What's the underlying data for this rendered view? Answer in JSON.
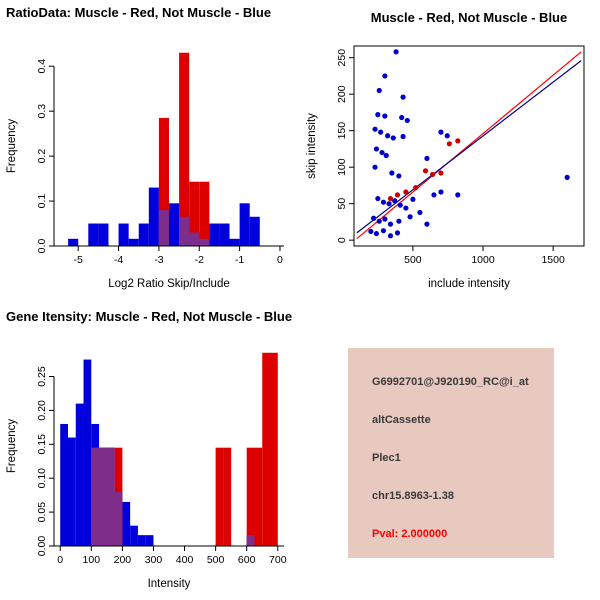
{
  "info_panel": {
    "bg": "#E7C9C0",
    "text_color": "#3A3A3A",
    "pval_color": "#FF0000",
    "probe_id": "G6992701@J920190_RC@i_at",
    "splice_type": "altCassette",
    "gene": "Plec1",
    "locus": "chr15.8963-1.38",
    "pval": "Pval: 2.000000"
  },
  "chart_data": [
    {
      "type": "bar",
      "title": "RatioData: Muscle - Red, Not Muscle - Blue",
      "xlabel": "Log2 Ratio Skip/Include",
      "ylabel": "Frequency",
      "xlim": [
        -5.6,
        0.1
      ],
      "ylim": [
        0,
        0.445
      ],
      "xticks": [
        -5,
        -4,
        -3,
        -2,
        -1,
        0
      ],
      "xtick_labels": [
        "-5",
        "-4",
        "-3",
        "-2",
        "-1",
        "0"
      ],
      "yticks": [
        0.0,
        0.1,
        0.2,
        0.3,
        0.4
      ],
      "ytick_labels": [
        "0.0",
        "0.1",
        "0.2",
        "0.3",
        "0.4"
      ],
      "bin_start": -5.5,
      "bin_width": 0.25,
      "overlap_color": "#7D2E8D",
      "series": [
        {
          "name": "Not Muscle",
          "color": "#0000DD",
          "values": [
            0,
            0.016,
            0,
            0.05,
            0.05,
            0,
            0.05,
            0.016,
            0.05,
            0.13,
            0.08,
            0.095,
            0.065,
            0.03,
            0.016,
            0.05,
            0.05,
            0.016,
            0.095,
            0.065,
            0,
            0
          ]
        },
        {
          "name": "Muscle",
          "color": "#DD0000",
          "values": [
            0,
            0,
            0,
            0,
            0,
            0,
            0,
            0,
            0,
            0,
            0.285,
            0,
            0.43,
            0.143,
            0.143,
            0,
            0,
            0,
            0,
            0,
            0,
            0
          ]
        }
      ]
    },
    {
      "type": "scatter",
      "title": "Muscle - Red, Not Muscle - Blue",
      "xlabel": "include intensity",
      "ylabel": "skip intensity",
      "xlim": [
        80,
        1720
      ],
      "ylim": [
        -8,
        266
      ],
      "xticks": [
        500,
        1000,
        1500
      ],
      "xtick_labels": [
        "500",
        "1000",
        "1500"
      ],
      "yticks": [
        0,
        50,
        100,
        150,
        200,
        250
      ],
      "ytick_labels": [
        "0",
        "50",
        "100",
        "150",
        "200",
        "250"
      ],
      "series": [
        {
          "name": "Not Muscle",
          "color": "#0000CD",
          "points": [
            [
              380,
              258
            ],
            [
              300,
              225
            ],
            [
              260,
              205
            ],
            [
              430,
              196
            ],
            [
              250,
              172
            ],
            [
              300,
              170
            ],
            [
              420,
              168
            ],
            [
              460,
              164
            ],
            [
              230,
              152
            ],
            [
              270,
              148
            ],
            [
              320,
              143
            ],
            [
              360,
              140
            ],
            [
              430,
              142
            ],
            [
              700,
              148
            ],
            [
              745,
              143
            ],
            [
              240,
              125
            ],
            [
              280,
              120
            ],
            [
              310,
              116
            ],
            [
              600,
              112
            ],
            [
              230,
              100
            ],
            [
              350,
              92
            ],
            [
              400,
              88
            ],
            [
              250,
              57
            ],
            [
              290,
              52
            ],
            [
              330,
              50
            ],
            [
              370,
              54
            ],
            [
              410,
              48
            ],
            [
              450,
              44
            ],
            [
              500,
              56
            ],
            [
              550,
              38
            ],
            [
              220,
              30
            ],
            [
              260,
              26
            ],
            [
              300,
              29
            ],
            [
              340,
              22
            ],
            [
              400,
              26
            ],
            [
              480,
              32
            ],
            [
              200,
              12
            ],
            [
              240,
              9
            ],
            [
              290,
              13
            ],
            [
              340,
              6
            ],
            [
              390,
              10
            ],
            [
              600,
              22
            ],
            [
              650,
              62
            ],
            [
              700,
              66
            ],
            [
              820,
              62
            ],
            [
              1600,
              86
            ]
          ]
        },
        {
          "name": "Muscle",
          "color": "#CC0000",
          "points": [
            [
              340,
              57
            ],
            [
              390,
              62
            ],
            [
              450,
              66
            ],
            [
              520,
              72
            ],
            [
              590,
              95
            ],
            [
              640,
              90
            ],
            [
              700,
              92
            ],
            [
              760,
              132
            ],
            [
              820,
              136
            ]
          ]
        }
      ],
      "lines": [
        {
          "color": "#FF0000",
          "x1": 100,
          "y1": 2,
          "x2": 1700,
          "y2": 258,
          "dash": ""
        },
        {
          "color": "#00008B",
          "x1": 100,
          "y1": 10,
          "x2": 1700,
          "y2": 246,
          "dash": ""
        }
      ]
    },
    {
      "type": "bar",
      "title": "Gene Itensity: Muscle - Red, Not Muscle - Blue",
      "xlabel": "Intensity",
      "ylabel": "Frequency",
      "xlim": [
        -20,
        720
      ],
      "ylim": [
        0,
        0.295
      ],
      "xticks": [
        0,
        100,
        200,
        300,
        400,
        500,
        600,
        700
      ],
      "xtick_labels": [
        "0",
        "100",
        "200",
        "300",
        "400",
        "500",
        "600",
        "700"
      ],
      "yticks": [
        0.0,
        0.05,
        0.1,
        0.15,
        0.2,
        0.25
      ],
      "ytick_labels": [
        "0.00",
        "0.05",
        "0.10",
        "0.15",
        "0.20",
        "0.25"
      ],
      "bin_start": 0,
      "bin_width": 25,
      "overlap_color": "#7D2E8D",
      "series": [
        {
          "name": "Not Muscle",
          "color": "#0000DD",
          "values": [
            0.18,
            0.16,
            0.21,
            0.275,
            0.18,
            0.145,
            0.145,
            0.08,
            0.065,
            0.03,
            0.016,
            0.016,
            0,
            0,
            0,
            0,
            0,
            0,
            0,
            0,
            0,
            0,
            0,
            0,
            0.016,
            0,
            0,
            0
          ]
        },
        {
          "name": "Muscle",
          "color": "#DD0000",
          "values": [
            0,
            0,
            0,
            0,
            0.145,
            0.145,
            0.145,
            0.145,
            0,
            0,
            0,
            0,
            0,
            0,
            0,
            0,
            0,
            0,
            0,
            0,
            0.145,
            0.145,
            0,
            0,
            0.145,
            0.145,
            0.285,
            0.285
          ]
        }
      ]
    }
  ]
}
